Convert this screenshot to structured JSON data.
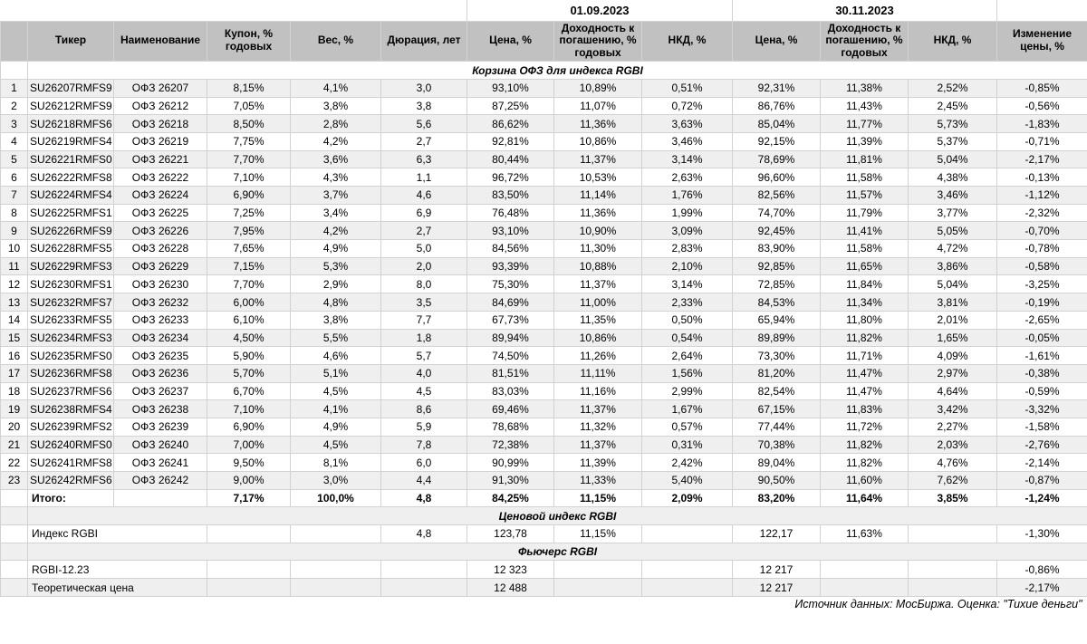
{
  "chart_data": {
    "type": "table",
    "title": "Корзина ОФЗ для индекса RGBI",
    "date_groups": [
      "01.09.2023",
      "30.11.2023"
    ],
    "columns": [
      "",
      "Тикер",
      "Наименование",
      "Купон, % годовых",
      "Вес, %",
      "Дюрация, лет",
      "Цена, %",
      "Доходность к погашению, % годовых",
      "НКД, %",
      "Цена, %",
      "Доходность к погашению, % годовых",
      "НКД, %",
      "Изменение цены, %"
    ],
    "section_basket": {
      "title": "Корзина ОФЗ для индекса RGBI",
      "rows": [
        [
          "1",
          "SU26207RMFS9",
          "ОФЗ 26207",
          "8,15%",
          "4,1%",
          "3,0",
          "93,10%",
          "10,89%",
          "0,51%",
          "92,31%",
          "11,38%",
          "2,52%",
          "-0,85%"
        ],
        [
          "2",
          "SU26212RMFS9",
          "ОФЗ 26212",
          "7,05%",
          "3,8%",
          "3,8",
          "87,25%",
          "11,07%",
          "0,72%",
          "86,76%",
          "11,43%",
          "2,45%",
          "-0,56%"
        ],
        [
          "3",
          "SU26218RMFS6",
          "ОФЗ 26218",
          "8,50%",
          "2,8%",
          "5,6",
          "86,62%",
          "11,36%",
          "3,63%",
          "85,04%",
          "11,77%",
          "5,73%",
          "-1,83%"
        ],
        [
          "4",
          "SU26219RMFS4",
          "ОФЗ 26219",
          "7,75%",
          "4,2%",
          "2,7",
          "92,81%",
          "10,86%",
          "3,46%",
          "92,15%",
          "11,39%",
          "5,37%",
          "-0,71%"
        ],
        [
          "5",
          "SU26221RMFS0",
          "ОФЗ 26221",
          "7,70%",
          "3,6%",
          "6,3",
          "80,44%",
          "11,37%",
          "3,14%",
          "78,69%",
          "11,81%",
          "5,04%",
          "-2,17%"
        ],
        [
          "6",
          "SU26222RMFS8",
          "ОФЗ 26222",
          "7,10%",
          "4,3%",
          "1,1",
          "96,72%",
          "10,53%",
          "2,63%",
          "96,60%",
          "11,58%",
          "4,38%",
          "-0,13%"
        ],
        [
          "7",
          "SU26224RMFS4",
          "ОФЗ 26224",
          "6,90%",
          "3,7%",
          "4,6",
          "83,50%",
          "11,14%",
          "1,76%",
          "82,56%",
          "11,57%",
          "3,46%",
          "-1,12%"
        ],
        [
          "8",
          "SU26225RMFS1",
          "ОФЗ 26225",
          "7,25%",
          "3,4%",
          "6,9",
          "76,48%",
          "11,36%",
          "1,99%",
          "74,70%",
          "11,79%",
          "3,77%",
          "-2,32%"
        ],
        [
          "9",
          "SU26226RMFS9",
          "ОФЗ 26226",
          "7,95%",
          "4,2%",
          "2,7",
          "93,10%",
          "10,90%",
          "3,09%",
          "92,45%",
          "11,41%",
          "5,05%",
          "-0,70%"
        ],
        [
          "10",
          "SU26228RMFS5",
          "ОФЗ 26228",
          "7,65%",
          "4,9%",
          "5,0",
          "84,56%",
          "11,30%",
          "2,83%",
          "83,90%",
          "11,58%",
          "4,72%",
          "-0,78%"
        ],
        [
          "11",
          "SU26229RMFS3",
          "ОФЗ 26229",
          "7,15%",
          "5,3%",
          "2,0",
          "93,39%",
          "10,88%",
          "2,10%",
          "92,85%",
          "11,65%",
          "3,86%",
          "-0,58%"
        ],
        [
          "12",
          "SU26230RMFS1",
          "ОФЗ 26230",
          "7,70%",
          "2,9%",
          "8,0",
          "75,30%",
          "11,37%",
          "3,14%",
          "72,85%",
          "11,84%",
          "5,04%",
          "-3,25%"
        ],
        [
          "13",
          "SU26232RMFS7",
          "ОФЗ 26232",
          "6,00%",
          "4,8%",
          "3,5",
          "84,69%",
          "11,00%",
          "2,33%",
          "84,53%",
          "11,34%",
          "3,81%",
          "-0,19%"
        ],
        [
          "14",
          "SU26233RMFS5",
          "ОФЗ 26233",
          "6,10%",
          "3,8%",
          "7,7",
          "67,73%",
          "11,35%",
          "0,50%",
          "65,94%",
          "11,80%",
          "2,01%",
          "-2,65%"
        ],
        [
          "15",
          "SU26234RMFS3",
          "ОФЗ 26234",
          "4,50%",
          "5,5%",
          "1,8",
          "89,94%",
          "10,86%",
          "0,54%",
          "89,89%",
          "11,82%",
          "1,65%",
          "-0,05%"
        ],
        [
          "16",
          "SU26235RMFS0",
          "ОФЗ 26235",
          "5,90%",
          "4,6%",
          "5,7",
          "74,50%",
          "11,26%",
          "2,64%",
          "73,30%",
          "11,71%",
          "4,09%",
          "-1,61%"
        ],
        [
          "17",
          "SU26236RMFS8",
          "ОФЗ 26236",
          "5,70%",
          "5,1%",
          "4,0",
          "81,51%",
          "11,11%",
          "1,56%",
          "81,20%",
          "11,47%",
          "2,97%",
          "-0,38%"
        ],
        [
          "18",
          "SU26237RMFS6",
          "ОФЗ 26237",
          "6,70%",
          "4,5%",
          "4,5",
          "83,03%",
          "11,16%",
          "2,99%",
          "82,54%",
          "11,47%",
          "4,64%",
          "-0,59%"
        ],
        [
          "19",
          "SU26238RMFS4",
          "ОФЗ 26238",
          "7,10%",
          "4,1%",
          "8,6",
          "69,46%",
          "11,37%",
          "1,67%",
          "67,15%",
          "11,83%",
          "3,42%",
          "-3,32%"
        ],
        [
          "20",
          "SU26239RMFS2",
          "ОФЗ 26239",
          "6,90%",
          "4,9%",
          "5,9",
          "78,68%",
          "11,32%",
          "0,57%",
          "77,44%",
          "11,72%",
          "2,27%",
          "-1,58%"
        ],
        [
          "21",
          "SU26240RMFS0",
          "ОФЗ 26240",
          "7,00%",
          "4,5%",
          "7,8",
          "72,38%",
          "11,37%",
          "0,31%",
          "70,38%",
          "11,82%",
          "2,03%",
          "-2,76%"
        ],
        [
          "22",
          "SU26241RMFS8",
          "ОФЗ 26241",
          "9,50%",
          "8,1%",
          "6,0",
          "90,99%",
          "11,39%",
          "2,42%",
          "89,04%",
          "11,82%",
          "4,76%",
          "-2,14%"
        ],
        [
          "23",
          "SU26242RMFS6",
          "ОФЗ 26242",
          "9,00%",
          "3,0%",
          "4,4",
          "91,30%",
          "11,33%",
          "5,40%",
          "90,50%",
          "11,60%",
          "7,62%",
          "-0,87%"
        ]
      ],
      "totals": {
        "label": "Итого:",
        "cells": [
          "7,17%",
          "100,0%",
          "4,8",
          "84,25%",
          "11,15%",
          "2,09%",
          "83,20%",
          "11,64%",
          "3,85%",
          "-1,24%"
        ]
      }
    },
    "section_index": {
      "title": "Ценовой индекс RGBI",
      "rows": [
        {
          "label": "Индекс RGBI",
          "cells": [
            "",
            "",
            "4,8",
            "123,78",
            "11,15%",
            "",
            "122,17",
            "11,63%",
            "",
            "-1,30%"
          ]
        }
      ]
    },
    "section_futures": {
      "title": "Фьючерс RGBI",
      "rows": [
        {
          "label": "RGBI-12.23",
          "cells": [
            "",
            "",
            "",
            "12 323",
            "",
            "",
            "12 217",
            "",
            "",
            "-0,86%"
          ]
        },
        {
          "label": "Теоретическая цена",
          "cells": [
            "",
            "",
            "",
            "12 488",
            "",
            "",
            "12 217",
            "",
            "",
            "-2,17%"
          ]
        }
      ]
    },
    "source_note": "Источник данных: МосБиржа. Оценка: \"Тихие деньги\""
  },
  "colors": {
    "header_bg": "#c1c1c1",
    "zebra_bg": "#efefef",
    "border": "#d2d2d2"
  }
}
